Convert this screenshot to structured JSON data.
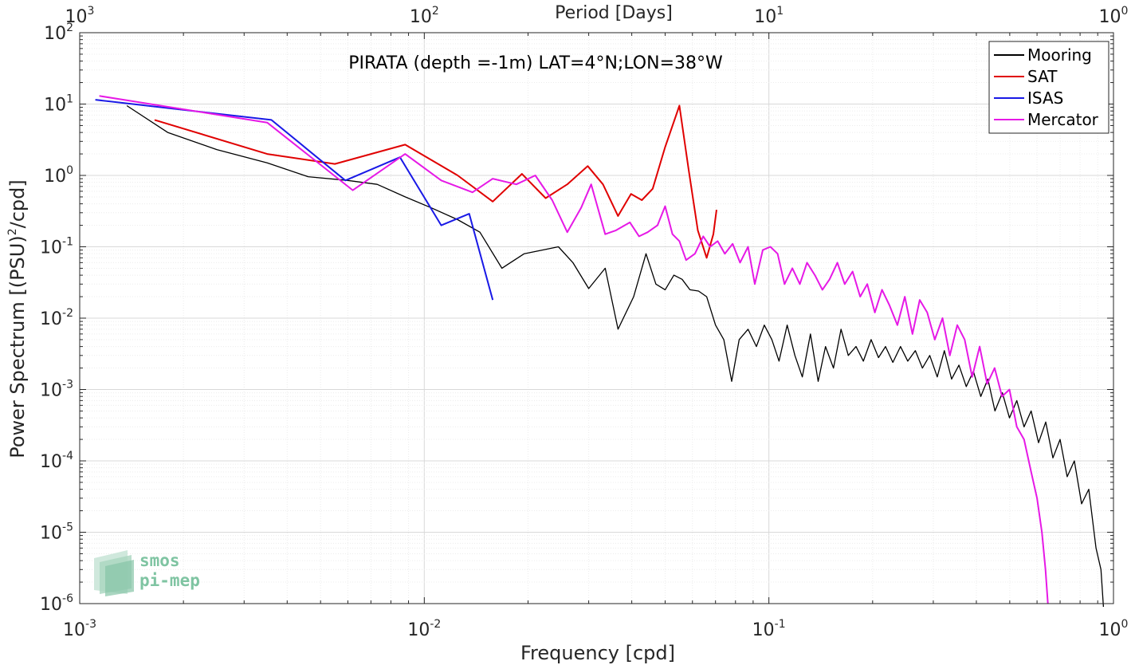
{
  "chart_data": {
    "type": "line",
    "title": "PIRATA (depth =-1m) LAT=4°N;LON=38°W",
    "xlabel": "Frequency [cpd]",
    "ylabel_main": "Power Spectrum [(PSU)",
    "ylabel_sup": "2",
    "ylabel_tail": "/cpd]",
    "top_xlabel": "Period [Days]",
    "x_scale": "log",
    "y_scale": "log",
    "xlim": [
      0.001,
      1
    ],
    "ylim": [
      1e-06,
      100
    ],
    "grid": true,
    "legend_position": "top-right",
    "x_ticks": [
      {
        "value": 0.001,
        "base": "10",
        "exp": "-3"
      },
      {
        "value": 0.01,
        "base": "10",
        "exp": "-2"
      },
      {
        "value": 0.1,
        "base": "10",
        "exp": "-1"
      },
      {
        "value": 1,
        "base": "10",
        "exp": "0"
      }
    ],
    "top_ticks": [
      {
        "value": 0.001,
        "base": "10",
        "exp": "3"
      },
      {
        "value": 0.01,
        "base": "10",
        "exp": "2"
      },
      {
        "value": 0.1,
        "base": "10",
        "exp": "1"
      },
      {
        "value": 1,
        "base": "10",
        "exp": "0"
      }
    ],
    "y_ticks": [
      {
        "value": 1e-06,
        "base": "10",
        "exp": "-6"
      },
      {
        "value": 1e-05,
        "base": "10",
        "exp": "-5"
      },
      {
        "value": 0.0001,
        "base": "10",
        "exp": "-4"
      },
      {
        "value": 0.001,
        "base": "10",
        "exp": "-3"
      },
      {
        "value": 0.01,
        "base": "10",
        "exp": "-2"
      },
      {
        "value": 0.1,
        "base": "10",
        "exp": "-1"
      },
      {
        "value": 1,
        "base": "10",
        "exp": "0"
      },
      {
        "value": 10,
        "base": "10",
        "exp": "1"
      },
      {
        "value": 100,
        "base": "10",
        "exp": "2"
      }
    ],
    "series": [
      {
        "name": "Mooring",
        "color": "#000000",
        "points": [
          [
            0.00137,
            9.5
          ],
          [
            0.0018,
            4
          ],
          [
            0.0025,
            2.3
          ],
          [
            0.0035,
            1.5
          ],
          [
            0.0046,
            0.96
          ],
          [
            0.006,
            0.85
          ],
          [
            0.0073,
            0.75
          ],
          [
            0.0088,
            0.5
          ],
          [
            0.0105,
            0.35
          ],
          [
            0.0125,
            0.24
          ],
          [
            0.0145,
            0.16
          ],
          [
            0.0168,
            0.05
          ],
          [
            0.0195,
            0.08
          ],
          [
            0.022,
            0.09
          ],
          [
            0.0245,
            0.1
          ],
          [
            0.027,
            0.06
          ],
          [
            0.03,
            0.026
          ],
          [
            0.0335,
            0.05
          ],
          [
            0.0365,
            0.007
          ],
          [
            0.0405,
            0.02
          ],
          [
            0.044,
            0.08
          ],
          [
            0.047,
            0.03
          ],
          [
            0.05,
            0.025
          ],
          [
            0.053,
            0.04
          ],
          [
            0.056,
            0.035
          ],
          [
            0.059,
            0.025
          ],
          [
            0.0625,
            0.024
          ],
          [
            0.066,
            0.02
          ],
          [
            0.07,
            0.008
          ],
          [
            0.074,
            0.005
          ],
          [
            0.078,
            0.0013
          ],
          [
            0.082,
            0.005
          ],
          [
            0.087,
            0.007
          ],
          [
            0.092,
            0.004
          ],
          [
            0.097,
            0.008
          ],
          [
            0.102,
            0.005
          ],
          [
            0.107,
            0.0025
          ],
          [
            0.113,
            0.008
          ],
          [
            0.119,
            0.003
          ],
          [
            0.125,
            0.0015
          ],
          [
            0.132,
            0.006
          ],
          [
            0.139,
            0.0013
          ],
          [
            0.146,
            0.004
          ],
          [
            0.154,
            0.002
          ],
          [
            0.162,
            0.007
          ],
          [
            0.17,
            0.003
          ],
          [
            0.179,
            0.004
          ],
          [
            0.188,
            0.0025
          ],
          [
            0.198,
            0.005
          ],
          [
            0.208,
            0.0028
          ],
          [
            0.218,
            0.004
          ],
          [
            0.229,
            0.0024
          ],
          [
            0.241,
            0.004
          ],
          [
            0.253,
            0.0025
          ],
          [
            0.266,
            0.0035
          ],
          [
            0.279,
            0.002
          ],
          [
            0.293,
            0.003
          ],
          [
            0.308,
            0.0015
          ],
          [
            0.323,
            0.0035
          ],
          [
            0.339,
            0.0014
          ],
          [
            0.356,
            0.0022
          ],
          [
            0.374,
            0.0011
          ],
          [
            0.392,
            0.0018
          ],
          [
            0.412,
            0.0008
          ],
          [
            0.432,
            0.0014
          ],
          [
            0.453,
            0.0005
          ],
          [
            0.476,
            0.0009
          ],
          [
            0.499,
            0.0004
          ],
          [
            0.524,
            0.0007
          ],
          [
            0.55,
            0.0003
          ],
          [
            0.577,
            0.0005
          ],
          [
            0.606,
            0.00018
          ],
          [
            0.636,
            0.00035
          ],
          [
            0.667,
            0.00011
          ],
          [
            0.7,
            0.0002
          ],
          [
            0.734,
            6e-05
          ],
          [
            0.77,
            0.0001
          ],
          [
            0.808,
            2.5e-05
          ],
          [
            0.848,
            4e-05
          ],
          [
            0.89,
            6e-06
          ],
          [
            0.92,
            3e-06
          ],
          [
            0.935,
            9e-07
          ]
        ]
      },
      {
        "name": "SAT",
        "color": "#e00000",
        "points": [
          [
            0.00165,
            6
          ],
          [
            0.0035,
            2
          ],
          [
            0.0055,
            1.45
          ],
          [
            0.0088,
            2.7
          ],
          [
            0.0125,
            1.0
          ],
          [
            0.0158,
            0.43
          ],
          [
            0.0192,
            1.05
          ],
          [
            0.0225,
            0.48
          ],
          [
            0.026,
            0.75
          ],
          [
            0.0298,
            1.35
          ],
          [
            0.033,
            0.75
          ],
          [
            0.0365,
            0.27
          ],
          [
            0.0398,
            0.55
          ],
          [
            0.0428,
            0.45
          ],
          [
            0.046,
            0.65
          ],
          [
            0.05,
            2.5
          ],
          [
            0.055,
            9.5
          ],
          [
            0.0585,
            1.2
          ],
          [
            0.0622,
            0.17
          ],
          [
            0.066,
            0.07
          ],
          [
            0.069,
            0.15
          ],
          [
            0.0705,
            0.33
          ]
        ]
      },
      {
        "name": "ISAS",
        "color": "#1919e6",
        "points": [
          [
            0.00111,
            11.5
          ],
          [
            0.0036,
            6
          ],
          [
            0.0059,
            0.85
          ],
          [
            0.0085,
            1.8
          ],
          [
            0.0112,
            0.2
          ],
          [
            0.0135,
            0.29
          ],
          [
            0.0158,
            0.018
          ]
        ]
      },
      {
        "name": "Mercator",
        "color": "#e619e6",
        "points": [
          [
            0.00114,
            13
          ],
          [
            0.0035,
            5.5
          ],
          [
            0.0062,
            0.62
          ],
          [
            0.0088,
            2.0
          ],
          [
            0.0112,
            0.85
          ],
          [
            0.0138,
            0.58
          ],
          [
            0.0158,
            0.9
          ],
          [
            0.0185,
            0.75
          ],
          [
            0.021,
            1.0
          ],
          [
            0.0235,
            0.45
          ],
          [
            0.026,
            0.16
          ],
          [
            0.0285,
            0.35
          ],
          [
            0.0305,
            0.75
          ],
          [
            0.0335,
            0.15
          ],
          [
            0.036,
            0.17
          ],
          [
            0.0395,
            0.22
          ],
          [
            0.042,
            0.14
          ],
          [
            0.0445,
            0.16
          ],
          [
            0.0475,
            0.2
          ],
          [
            0.05,
            0.37
          ],
          [
            0.0525,
            0.15
          ],
          [
            0.055,
            0.12
          ],
          [
            0.0575,
            0.065
          ],
          [
            0.061,
            0.08
          ],
          [
            0.0645,
            0.14
          ],
          [
            0.0675,
            0.1
          ],
          [
            0.071,
            0.12
          ],
          [
            0.0745,
            0.08
          ],
          [
            0.0785,
            0.11
          ],
          [
            0.0825,
            0.06
          ],
          [
            0.087,
            0.1
          ],
          [
            0.091,
            0.03
          ],
          [
            0.096,
            0.09
          ],
          [
            0.101,
            0.1
          ],
          [
            0.106,
            0.08
          ],
          [
            0.111,
            0.03
          ],
          [
            0.117,
            0.05
          ],
          [
            0.123,
            0.03
          ],
          [
            0.129,
            0.06
          ],
          [
            0.136,
            0.04
          ],
          [
            0.143,
            0.025
          ],
          [
            0.15,
            0.035
          ],
          [
            0.158,
            0.06
          ],
          [
            0.166,
            0.03
          ],
          [
            0.175,
            0.045
          ],
          [
            0.184,
            0.02
          ],
          [
            0.193,
            0.03
          ],
          [
            0.203,
            0.012
          ],
          [
            0.213,
            0.025
          ],
          [
            0.224,
            0.015
          ],
          [
            0.236,
            0.008
          ],
          [
            0.248,
            0.02
          ],
          [
            0.261,
            0.006
          ],
          [
            0.274,
            0.018
          ],
          [
            0.288,
            0.012
          ],
          [
            0.303,
            0.005
          ],
          [
            0.319,
            0.01
          ],
          [
            0.335,
            0.003
          ],
          [
            0.352,
            0.008
          ],
          [
            0.37,
            0.005
          ],
          [
            0.389,
            0.0015
          ],
          [
            0.409,
            0.004
          ],
          [
            0.43,
            0.0012
          ],
          [
            0.452,
            0.002
          ],
          [
            0.475,
            0.0008
          ],
          [
            0.499,
            0.001
          ],
          [
            0.524,
            0.0003
          ],
          [
            0.55,
            0.0002
          ],
          [
            0.577,
            7e-05
          ],
          [
            0.6,
            3e-05
          ],
          [
            0.62,
            1e-05
          ],
          [
            0.635,
            3e-06
          ],
          [
            0.645,
            1e-06
          ]
        ]
      }
    ]
  },
  "logo": {
    "line1": "smos",
    "line2": "pi-mep"
  }
}
